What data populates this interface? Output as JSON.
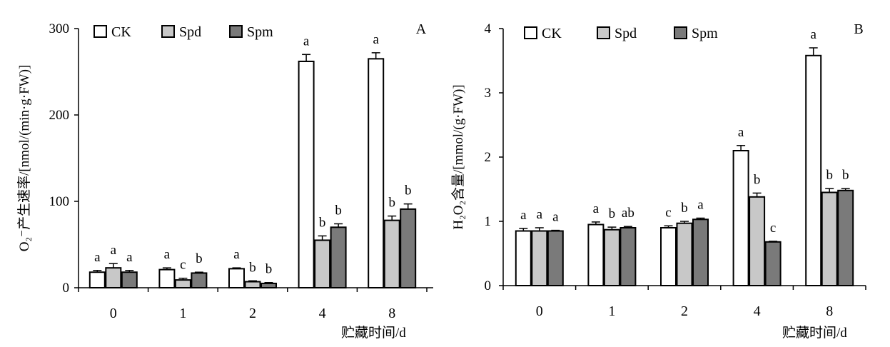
{
  "chart_data": [
    {
      "type": "bar",
      "panel_label": "A",
      "ylabel": "O₂⁻产生速率/[nmol/(min·g·FW)]",
      "xlabel": "贮藏时间/d",
      "categories": [
        "0",
        "1",
        "2",
        "4",
        "8"
      ],
      "ylim": [
        0,
        300
      ],
      "yticks": [
        "0",
        "100",
        "200",
        "300"
      ],
      "grid": false,
      "legend": "top-left",
      "series": [
        {
          "name": "CK",
          "values": [
            18,
            21,
            22,
            262,
            265
          ],
          "errors": [
            2,
            2,
            1,
            8,
            7
          ],
          "letters": [
            "a",
            "a",
            "a",
            "a",
            "a"
          ],
          "color": "#ffffff"
        },
        {
          "name": "Spd",
          "values": [
            23,
            9,
            7,
            55,
            78
          ],
          "errors": [
            5,
            2,
            1,
            5,
            5
          ],
          "letters": [
            "a",
            "c",
            "b",
            "b",
            "b"
          ],
          "color": "#c8c8c8"
        },
        {
          "name": "Spm",
          "values": [
            18,
            17,
            5,
            70,
            91
          ],
          "errors": [
            2,
            1,
            1,
            4,
            6
          ],
          "letters": [
            "a",
            "b",
            "b",
            "b",
            "b"
          ],
          "color": "#7a7a7a"
        }
      ]
    },
    {
      "type": "bar",
      "panel_label": "B",
      "ylabel": "H₂O₂含量/[mmol/(g·FW)]",
      "xlabel": "贮藏时间/d",
      "categories": [
        "0",
        "1",
        "2",
        "4",
        "8"
      ],
      "ylim": [
        0,
        4
      ],
      "yticks": [
        "0",
        "1",
        "2",
        "3",
        "4"
      ],
      "grid": false,
      "legend": "top-left",
      "series": [
        {
          "name": "CK",
          "values": [
            0.85,
            0.95,
            0.9,
            2.1,
            3.58
          ],
          "errors": [
            0.04,
            0.04,
            0.03,
            0.08,
            0.12
          ],
          "letters": [
            "a",
            "a",
            "c",
            "a",
            "a"
          ],
          "color": "#ffffff"
        },
        {
          "name": "Spd",
          "values": [
            0.85,
            0.87,
            0.97,
            1.38,
            1.45
          ],
          "errors": [
            0.05,
            0.04,
            0.03,
            0.06,
            0.06
          ],
          "letters": [
            "a",
            "b",
            "b",
            "b",
            "b"
          ],
          "color": "#c8c8c8"
        },
        {
          "name": "Spm",
          "values": [
            0.85,
            0.9,
            1.03,
            0.68,
            1.48
          ],
          "errors": [
            0.01,
            0.02,
            0.02,
            0.01,
            0.03
          ],
          "letters": [
            "a",
            "ab",
            "a",
            "c",
            "b"
          ],
          "color": "#7a7a7a"
        }
      ]
    }
  ]
}
